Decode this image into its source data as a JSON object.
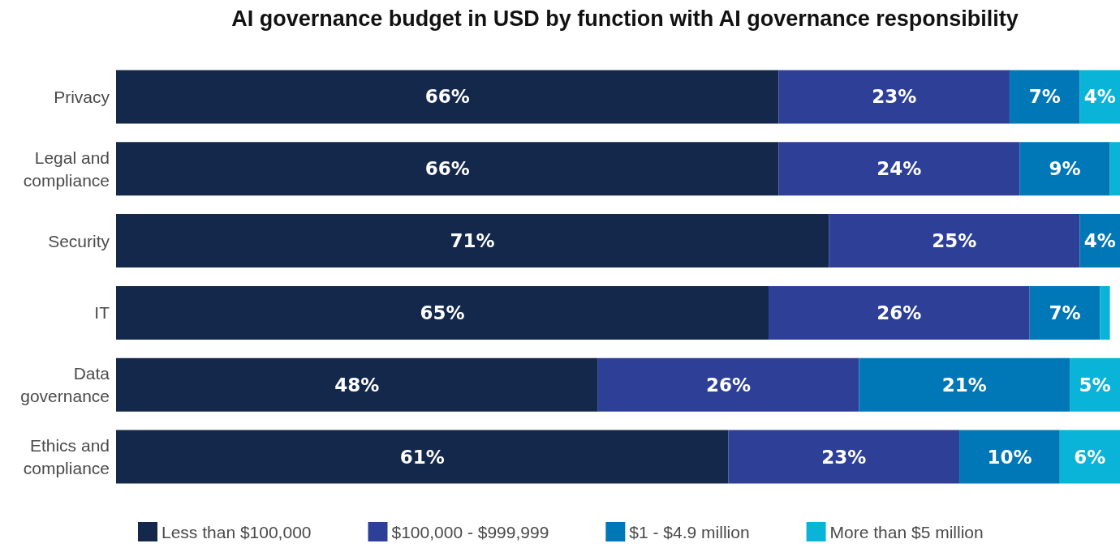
{
  "chart_data": {
    "type": "bar",
    "orientation": "horizontal",
    "stacked": true,
    "title": "AI governance budget in USD by function with AI governance responsibility",
    "categories": [
      "Privacy",
      "Legal and compliance",
      "Security",
      "IT",
      "Data governance",
      "Ethics and compliance"
    ],
    "xlim": [
      0,
      100
    ],
    "tick_labels": "y",
    "grid": false,
    "legend": "bottom",
    "series": [
      {
        "name": "Less than $100,000",
        "color": "#14284b",
        "values": [
          66,
          66,
          71,
          65,
          48,
          61
        ],
        "value_labels": [
          "66%",
          "66%",
          "71%",
          "65%",
          "48%",
          "61%"
        ]
      },
      {
        "name": "$100,000 - $999,999",
        "color": "#2e3f97",
        "values": [
          23,
          24,
          25,
          26,
          26,
          23
        ],
        "value_labels": [
          "23%",
          "24%",
          "25%",
          "26%",
          "26%",
          "23%"
        ]
      },
      {
        "name": "$1 - $4.9 million",
        "color": "#0077b6",
        "values": [
          7,
          9,
          4,
          7,
          21,
          10
        ],
        "value_labels": [
          "7%",
          "9%",
          "4%",
          "7%",
          "21%",
          "10%"
        ]
      },
      {
        "name": "More than $5 million",
        "color": "#0ab4d8",
        "values": [
          4,
          1,
          null,
          1,
          5,
          6
        ],
        "value_labels": [
          "4%",
          null,
          null,
          null,
          "5%",
          "6%"
        ]
      }
    ]
  }
}
